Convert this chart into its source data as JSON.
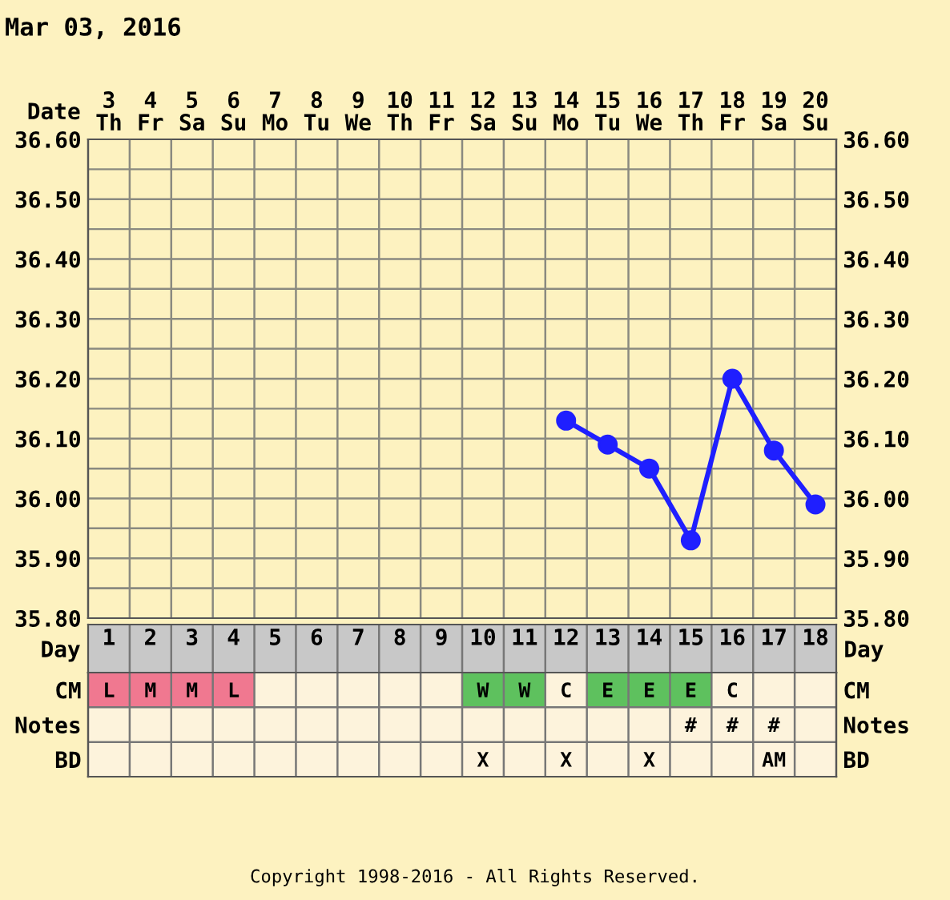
{
  "chart_data": [
    {
      "type": "line",
      "title": "Mar 03, 2016",
      "xlabel": "Date",
      "categories": [
        "3\nTh",
        "4\nFr",
        "5\nSa",
        "6\nSu",
        "7\nMo",
        "8\nTu",
        "9\nWe",
        "10\nTh",
        "11\nFr",
        "12\nSa",
        "13\nSu",
        "14\nMo",
        "15\nTu",
        "16\nWe",
        "17\nTh",
        "18\nFr",
        "19\nSa",
        "20\nSu"
      ],
      "series": [
        {
          "color": "#1f1fff",
          "values": [
            null,
            null,
            null,
            null,
            null,
            null,
            null,
            null,
            null,
            null,
            null,
            36.13,
            36.09,
            36.05,
            35.93,
            36.2,
            36.08,
            35.99
          ]
        }
      ],
      "ylim": [
        35.8,
        36.6
      ],
      "yticks": [
        {
          "value": 35.8,
          "label": "35.80"
        },
        {
          "value": 35.85,
          "label": null
        },
        {
          "value": 35.9,
          "label": "35.90"
        },
        {
          "value": 35.95,
          "label": null
        },
        {
          "value": 36.0,
          "label": "36.00"
        },
        {
          "value": 36.05,
          "label": null
        },
        {
          "value": 36.1,
          "label": "36.10"
        },
        {
          "value": 36.15,
          "label": null
        },
        {
          "value": 36.2,
          "label": "36.20"
        },
        {
          "value": 36.25,
          "label": null
        },
        {
          "value": 36.3,
          "label": "36.30"
        },
        {
          "value": 36.35,
          "label": null
        },
        {
          "value": 36.4,
          "label": "36.40"
        },
        {
          "value": 36.45,
          "label": null
        },
        {
          "value": 36.5,
          "label": "36.50"
        },
        {
          "value": 36.55,
          "label": null
        },
        {
          "value": 36.6,
          "label": "36.60"
        }
      ],
      "y2lim": [
        35.8,
        36.6
      ],
      "y2ticks": [
        {
          "value": 35.8,
          "label": "35.80"
        },
        {
          "value": 35.9,
          "label": "35.90"
        },
        {
          "value": 36.0,
          "label": "36.00"
        },
        {
          "value": 36.1,
          "label": "36.10"
        },
        {
          "value": 36.2,
          "label": "36.20"
        },
        {
          "value": 36.3,
          "label": "36.30"
        },
        {
          "value": 36.4,
          "label": "36.40"
        },
        {
          "value": 36.5,
          "label": "36.50"
        },
        {
          "value": 36.6,
          "label": "36.60"
        }
      ],
      "grid": true,
      "marker": "circle",
      "line_style": "solid"
    },
    {
      "type": "heatmap",
      "xlabel": "Day",
      "categories": [
        "1",
        "2",
        "3",
        "4",
        "5",
        "6",
        "7",
        "8",
        "9",
        "10",
        "11",
        "12",
        "13",
        "14",
        "15",
        "16",
        "17",
        "18"
      ],
      "y_categories": [
        "CM",
        "Notes",
        "BD"
      ],
      "y2_categories": [
        "CM",
        "Notes",
        "BD"
      ],
      "cells": [
        [
          null,
          null,
          null,
          null,
          null,
          null,
          null,
          null,
          null,
          null,
          null,
          null,
          null,
          null,
          null,
          null,
          null,
          null
        ],
        [
          null,
          null,
          null,
          null,
          null,
          null,
          null,
          null,
          null,
          null,
          null,
          null,
          null,
          null,
          null,
          null,
          null,
          null
        ],
        [
          null,
          null,
          null,
          null,
          null,
          null,
          null,
          null,
          null,
          null,
          null,
          null,
          null,
          null,
          null,
          null,
          null,
          null
        ]
      ],
      "cell_labels": [
        [
          "L",
          "M",
          "M",
          "L",
          null,
          null,
          null,
          null,
          null,
          "W",
          "W",
          "C",
          "E",
          "E",
          "E",
          "C",
          null,
          null
        ],
        [
          null,
          null,
          null,
          null,
          null,
          null,
          null,
          null,
          null,
          null,
          null,
          null,
          null,
          null,
          "#",
          "#",
          "#",
          null
        ],
        [
          null,
          null,
          null,
          null,
          null,
          null,
          null,
          null,
          null,
          "X",
          null,
          "X",
          null,
          "X",
          null,
          null,
          "AM",
          null
        ]
      ],
      "colors": [
        [
          "#f07890",
          "#f07890",
          "#f07890",
          "#f07890",
          null,
          null,
          null,
          null,
          null,
          "#5ec15e",
          "#5ec15e",
          null,
          "#5ec15e",
          "#5ec15e",
          "#5ec15e",
          null,
          null,
          null
        ],
        [
          null,
          null,
          null,
          null,
          null,
          null,
          null,
          null,
          null,
          null,
          null,
          null,
          null,
          null,
          null,
          null,
          null,
          null
        ],
        [
          null,
          null,
          null,
          null,
          null,
          null,
          null,
          null,
          null,
          null,
          null,
          null,
          null,
          null,
          null,
          null,
          null,
          null
        ]
      ],
      "annotations": [
        "Copyright 1998-2016 - All Rights Reserved."
      ]
    }
  ]
}
